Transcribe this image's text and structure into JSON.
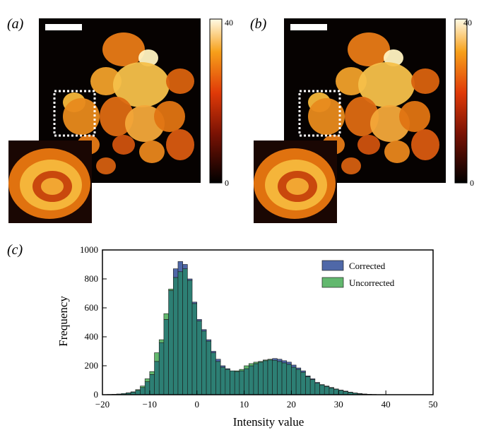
{
  "panels": {
    "a": {
      "label": "(a)"
    },
    "b": {
      "label": "(b)"
    },
    "c": {
      "label": "(c)"
    }
  },
  "colorbar": {
    "min_label": "0",
    "max_label": "40",
    "min": 0,
    "max": 40
  },
  "colors": {
    "corrected": "#4f68a8",
    "uncorrected": "#62b86e",
    "overlap": "#2d7f74",
    "axes": "#000000",
    "scalebar": "#ffffff"
  },
  "chart_data": {
    "type": "bar",
    "xlabel": "Intensity value",
    "ylabel": "Frequency",
    "xlim": [
      -20,
      50
    ],
    "ylim": [
      0,
      1000
    ],
    "xticks": [
      "−20",
      "−10",
      "0",
      "10",
      "20",
      "30",
      "40",
      "50"
    ],
    "yticks": [
      "0",
      "200",
      "400",
      "600",
      "800",
      "1000"
    ],
    "legend_position": "top-right",
    "bin_width": 1,
    "bin_start": -20,
    "series": [
      {
        "name": "Corrected",
        "values": [
          0,
          2,
          3,
          5,
          8,
          12,
          18,
          30,
          50,
          90,
          140,
          230,
          360,
          520,
          720,
          870,
          920,
          900,
          800,
          640,
          520,
          450,
          380,
          300,
          245,
          200,
          180,
          165,
          160,
          165,
          180,
          200,
          215,
          225,
          235,
          240,
          250,
          245,
          235,
          225,
          205,
          185,
          165,
          130,
          110,
          85,
          70,
          60,
          50,
          40,
          32,
          25,
          18,
          12,
          8,
          5,
          3,
          2,
          1,
          0,
          0,
          0,
          0,
          0,
          0,
          0,
          0,
          0,
          0,
          0
        ]
      },
      {
        "name": "Uncorrected",
        "values": [
          0,
          2,
          3,
          5,
          8,
          13,
          20,
          35,
          60,
          110,
          160,
          290,
          380,
          560,
          730,
          810,
          850,
          870,
          790,
          630,
          510,
          440,
          370,
          290,
          230,
          190,
          175,
          165,
          165,
          175,
          200,
          215,
          225,
          230,
          240,
          245,
          238,
          230,
          220,
          210,
          190,
          175,
          155,
          125,
          105,
          80,
          68,
          57,
          47,
          38,
          30,
          22,
          16,
          11,
          7,
          4,
          2,
          1,
          1,
          0,
          0,
          0,
          0,
          0,
          0,
          0,
          0,
          0,
          0,
          0
        ]
      }
    ]
  }
}
